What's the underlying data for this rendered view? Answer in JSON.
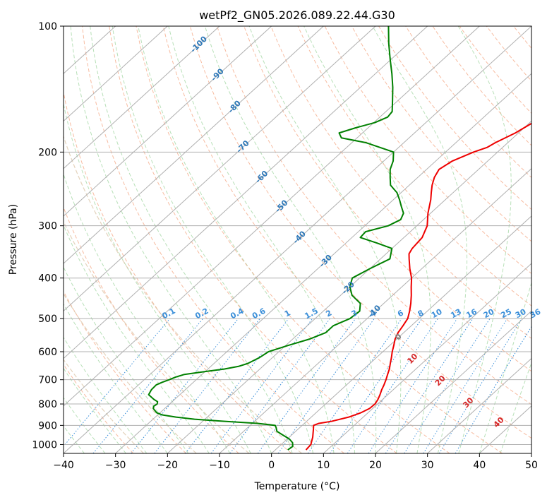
{
  "chart_data": {
    "type": "line",
    "diagram": "skew-t",
    "title": "wetPf2_GN05.2026.089.22.44.G30",
    "xlabel": "Temperature (°C)",
    "ylabel": "Pressure (hPa)",
    "xlim": [
      -40,
      50
    ],
    "ylim": [
      1050,
      100
    ],
    "y_scale": "log",
    "grid": true,
    "x_ticks": [
      -40,
      -30,
      -20,
      -10,
      0,
      10,
      20,
      30,
      40,
      50
    ],
    "x_tick_labels": [
      "−40",
      "−30",
      "−20",
      "−10",
      "0",
      "10",
      "20",
      "30",
      "40",
      "50"
    ],
    "y_ticks": [
      1000,
      900,
      800,
      700,
      600,
      500,
      400,
      300,
      200,
      100
    ],
    "y_tick_labels": [
      "1000",
      "900",
      "800",
      "700",
      "600",
      "500",
      "400",
      "300",
      "200",
      "100"
    ],
    "colors": {
      "temperature": "#ee0000",
      "dewpoint": "#008000",
      "isotherm": "#b0b0b0",
      "isobar": "#b0b0b0",
      "dry_adiabat": "#f4a582",
      "moist_adiabat": "#a6d8a6",
      "mixing_ratio": "#3b8fd9",
      "theta_e": "#d8c0a0",
      "isotherm_label": "#2e78b8",
      "mixing_label": "#3b8fd9",
      "dry_label": "#d62728",
      "zero_label": "#808080"
    },
    "series": [
      {
        "id": "temperature",
        "p": [
          1030,
          1000,
          960,
          920,
          900,
          890,
          880,
          860,
          840,
          820,
          800,
          780,
          760,
          740,
          720,
          700,
          680,
          660,
          640,
          620,
          600,
          580,
          560,
          540,
          520,
          500,
          480,
          460,
          440,
          420,
          400,
          380,
          360,
          350,
          340,
          320,
          300,
          280,
          260,
          250,
          240,
          230,
          220,
          210,
          200,
          195,
          190,
          180,
          170,
          160,
          150,
          140,
          130,
          120,
          110,
          100
        ],
        "t": [
          5.9,
          5.7,
          4.5,
          3.0,
          2.2,
          2.8,
          4.8,
          7.2,
          8.6,
          9.4,
          9.5,
          9.1,
          8.5,
          7.8,
          7.2,
          6.5,
          5.7,
          4.9,
          3.9,
          2.9,
          1.8,
          0.8,
          -0.3,
          -1.1,
          -1.6,
          -2.2,
          -3.4,
          -4.8,
          -6.4,
          -8.2,
          -10.0,
          -12.3,
          -14.5,
          -15.6,
          -16.1,
          -16.5,
          -18.0,
          -20.5,
          -22.8,
          -24.2,
          -25.6,
          -26.8,
          -27.6,
          -26.8,
          -24.6,
          -23.0,
          -22.4,
          -20.6,
          -19.4,
          -18.6,
          -18.4,
          -18.0,
          -17.5,
          -17.2,
          -17.0,
          -16.8
        ]
      },
      {
        "id": "dewpoint",
        "p": [
          1030,
          1010,
          990,
          970,
          950,
          930,
          910,
          900,
          890,
          880,
          870,
          860,
          850,
          840,
          830,
          820,
          810,
          800,
          790,
          780,
          760,
          740,
          720,
          710,
          700,
          690,
          680,
          670,
          660,
          650,
          640,
          620,
          600,
          580,
          560,
          540,
          520,
          500,
          480,
          460,
          440,
          420,
          400,
          380,
          360,
          340,
          330,
          320,
          310,
          300,
          290,
          280,
          270,
          260,
          250,
          240,
          230,
          220,
          210,
          200,
          190,
          185,
          180,
          175,
          170,
          165,
          160,
          150,
          140,
          130,
          120,
          110,
          100
        ],
        "t": [
          2.4,
          2.6,
          1.8,
          0.4,
          -1.6,
          -3.6,
          -4.6,
          -5.2,
          -9.0,
          -16.0,
          -22.0,
          -26.0,
          -29.0,
          -30.6,
          -31.4,
          -32.2,
          -32.6,
          -32.4,
          -32.8,
          -34.0,
          -36.0,
          -36.5,
          -36.6,
          -36.0,
          -35.2,
          -34.5,
          -33.4,
          -30.2,
          -26.8,
          -24.6,
          -23.5,
          -22.5,
          -22.0,
          -19.6,
          -16.8,
          -15.0,
          -15.0,
          -13.3,
          -13.0,
          -14.5,
          -17.8,
          -20.0,
          -21.4,
          -20.0,
          -18.2,
          -20.0,
          -24.0,
          -28.4,
          -28.6,
          -25.5,
          -24.4,
          -25.2,
          -27.0,
          -28.8,
          -30.8,
          -33.6,
          -35.3,
          -37.0,
          -38.2,
          -40.0,
          -47.2,
          -53.0,
          -54.5,
          -52.4,
          -49.8,
          -48.5,
          -48.8,
          -51.2,
          -53.8,
          -56.8,
          -60.2,
          -63.8,
          -67.5
        ]
      }
    ],
    "isotherm_labels": [
      {
        "t": -100,
        "text": "-100"
      },
      {
        "t": -90,
        "text": "-90"
      },
      {
        "t": -80,
        "text": "-80"
      },
      {
        "t": -70,
        "text": "-70"
      },
      {
        "t": -60,
        "text": "-60"
      },
      {
        "t": -50,
        "text": "-50"
      },
      {
        "t": -40,
        "text": "-40"
      },
      {
        "t": -30,
        "text": "-30"
      },
      {
        "t": -20,
        "text": "-20"
      },
      {
        "t": -10,
        "text": "-10"
      },
      {
        "t": 0,
        "text": "0"
      }
    ],
    "mixing_ratio_labels": [
      "0.1",
      "0.2",
      "0.4",
      "0.6",
      "1",
      "1.5",
      "2",
      "3",
      "4",
      "6",
      "8",
      "10",
      "13",
      "16",
      "20",
      "25",
      "30",
      "36"
    ],
    "dry_adiabat_labels": [
      {
        "t": 10,
        "text": "10"
      },
      {
        "t": 20,
        "text": "20"
      },
      {
        "t": 30,
        "text": "30"
      },
      {
        "t": 40,
        "text": "40"
      }
    ]
  }
}
